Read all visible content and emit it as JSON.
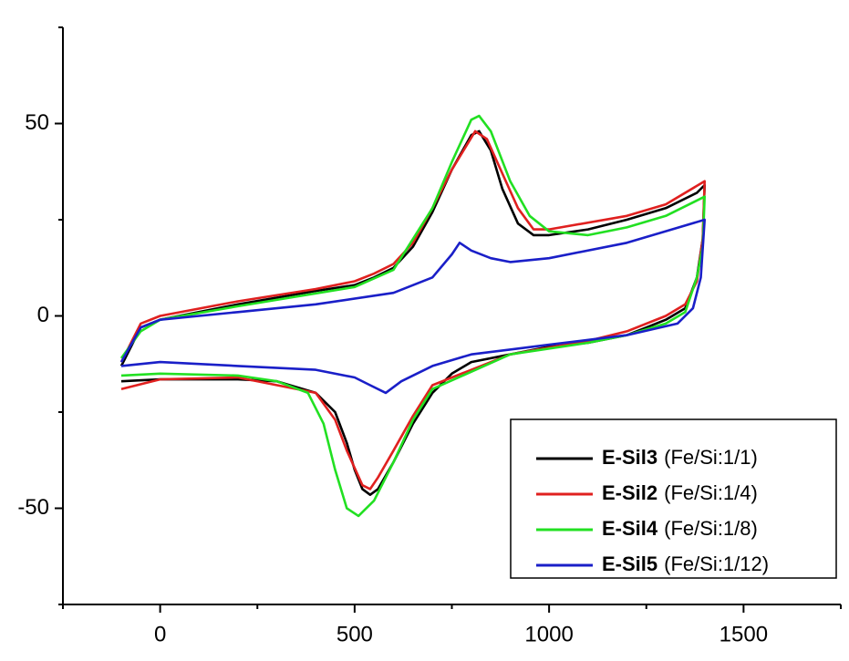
{
  "chart_data": {
    "type": "line",
    "xlim": [
      -250,
      1750
    ],
    "xticks": [
      0,
      500,
      1000,
      1500
    ],
    "xminorticks": [
      -250,
      250,
      750,
      1250,
      1750
    ],
    "ylim": [
      -75,
      75
    ],
    "yticks": [
      -50,
      0,
      50
    ],
    "yminorticks": [
      -75,
      -25,
      25,
      75
    ],
    "legend": "lower right",
    "series": [
      {
        "name": "E-Sil3",
        "composition": "(Fe/Si:1/1)",
        "color": "#000000",
        "x": [
          -100,
          -50,
          0,
          200,
          400,
          500,
          550,
          600,
          650,
          700,
          750,
          800,
          820,
          850,
          880,
          920,
          960,
          1000,
          1100,
          1200,
          1300,
          1380,
          1400,
          1395,
          1380,
          1350,
          1300,
          1250,
          1200,
          1100,
          1000,
          900,
          800,
          750,
          700,
          650,
          600,
          560,
          540,
          520,
          500,
          480,
          450,
          400,
          300,
          200,
          100,
          0,
          -100
        ],
        "values": [
          -13,
          -3,
          -1,
          3,
          6.5,
          8,
          10,
          12.5,
          18,
          27,
          38,
          47,
          48,
          43,
          33,
          24,
          21,
          21,
          22.5,
          25,
          28,
          32,
          34,
          20,
          10,
          2,
          -1,
          -3,
          -5,
          -7,
          -8,
          -10,
          -12,
          -15,
          -20,
          -28,
          -38,
          -45,
          -46.5,
          -45,
          -40,
          -33,
          -25,
          -20,
          -17,
          -16.5,
          -16.5,
          -16.5,
          -17
        ]
      },
      {
        "name": "E-Sil2",
        "composition": "(Fe/Si:1/4)",
        "color": "#e0201f",
        "x": [
          -100,
          -50,
          0,
          200,
          400,
          500,
          550,
          600,
          650,
          700,
          750,
          810,
          840,
          880,
          920,
          960,
          1000,
          1200,
          1300,
          1400,
          1395,
          1380,
          1350,
          1300,
          1200,
          1100,
          900,
          700,
          650,
          600,
          560,
          540,
          520,
          480,
          450,
          400,
          200,
          0,
          -100
        ],
        "values": [
          -12,
          -2,
          0,
          3.8,
          7,
          9,
          11,
          13.5,
          19,
          28,
          38,
          48,
          46,
          37,
          28,
          22.5,
          22.5,
          26,
          29,
          35,
          20,
          9,
          3,
          0,
          -4,
          -6.5,
          -10,
          -18,
          -26,
          -35,
          -42,
          -45,
          -44,
          -35,
          -27,
          -20,
          -16,
          -16.5,
          -19
        ]
      },
      {
        "name": "E-Sil4",
        "composition": "(Fe/Si:1/8)",
        "color": "#22e022",
        "x": [
          -100,
          -50,
          0,
          200,
          500,
          600,
          700,
          750,
          800,
          820,
          850,
          900,
          950,
          1000,
          1100,
          1200,
          1300,
          1400,
          1395,
          1380,
          1350,
          1300,
          1200,
          1100,
          900,
          700,
          650,
          600,
          550,
          510,
          480,
          450,
          420,
          380,
          300,
          200,
          0,
          -100
        ],
        "values": [
          -11,
          -4,
          -1,
          2.5,
          7.5,
          12,
          28,
          40,
          51,
          52,
          48,
          35,
          26,
          22,
          21,
          23,
          26,
          31,
          18,
          10,
          1,
          -2,
          -5,
          -7,
          -10,
          -19,
          -27,
          -38,
          -48,
          -52,
          -50,
          -40,
          -28,
          -20,
          -17,
          -15.5,
          -15,
          -15.5
        ]
      },
      {
        "name": "E-Sil5",
        "composition": "(Fe/Si:1/12)",
        "color": "#1a1fc8",
        "x": [
          -100,
          -50,
          0,
          200,
          400,
          600,
          700,
          750,
          770,
          800,
          850,
          900,
          1000,
          1200,
          1400,
          1390,
          1370,
          1330,
          1200,
          1000,
          800,
          700,
          620,
          580,
          540,
          500,
          400,
          200,
          0,
          -100
        ],
        "values": [
          -12,
          -3,
          -1,
          1,
          3,
          6,
          10,
          16,
          19,
          17,
          15,
          14,
          15,
          19,
          25,
          10,
          2,
          -2,
          -5,
          -7.5,
          -10,
          -13,
          -17,
          -20,
          -18,
          -16,
          -14,
          -13,
          -12,
          -13
        ]
      }
    ]
  }
}
